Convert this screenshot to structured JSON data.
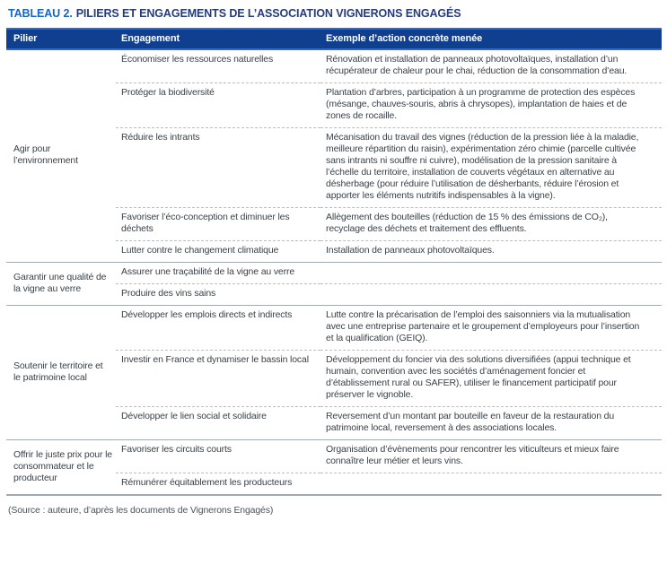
{
  "title": {
    "label": "TABLEAU 2.",
    "text": "PILIERS ET ENGAGEMENTS DE L’ASSOCIATION VIGNERONS ENGAGÉS"
  },
  "table": {
    "headers": [
      "Pilier",
      "Engagement",
      "Exemple d’action concrète menée"
    ],
    "groups": [
      {
        "pilier": "Agir pour l’environnement",
        "rows": [
          {
            "engagement": "Économiser les ressources naturelles",
            "exemple": "Rénovation et installation de panneaux photovoltaïques, installation d’un récupérateur de chaleur pour le chai, réduction de la consommation d’eau."
          },
          {
            "engagement": "Protéger la biodiversité",
            "exemple": "Plantation d’arbres, participation à un programme de protection des espèces (mésange, chauves-souris, abris à chrysopes), implantation de haies et de zones de rocaille."
          },
          {
            "engagement": "Réduire les intrants",
            "exemple": "Mécanisation du travail des vignes (réduction de la pression liée à la maladie, meilleure répartition du raisin), expérimentation zéro chimie (parcelle cultivée sans intrants ni souffre ni cuivre), modélisation de la pression sanitaire à l’échelle du territoire, installation de couverts végétaux en alternative au désherbage (pour réduire l’utilisation de désherbants, réduire l’érosion et apporter les éléments nutritifs indispensables à la vigne)."
          },
          {
            "engagement": "Favoriser l’éco-conception et diminuer les déchets",
            "exemple": "Allègement des bouteilles (réduction de 15 % des émissions de CO₂), recyclage des déchets et traitement des effluents."
          },
          {
            "engagement": "Lutter contre le changement climatique",
            "exemple": "Installation de panneaux photovoltaïques."
          }
        ]
      },
      {
        "pilier": "Garantir une qualité de la vigne au verre",
        "rows": [
          {
            "engagement": "Assurer une traçabilité de la vigne au verre",
            "exemple": ""
          },
          {
            "engagement": "Produire des vins sains",
            "exemple": ""
          }
        ]
      },
      {
        "pilier": "Soutenir le territoire et le patrimoine local",
        "rows": [
          {
            "engagement": "Développer les emplois directs et indirects",
            "exemple": "Lutte contre la précarisation de l’emploi des saisonniers via la mutualisation avec une entreprise partenaire et le groupement d’employeurs pour l’insertion et la qualification (GEIQ)."
          },
          {
            "engagement": "Investir en France et dynamiser le bassin local",
            "exemple": "Développement du foncier via des solutions diversifiées (appui technique et humain, convention avec les sociétés d’aménagement foncier et d’établissement rural ou SAFER), utiliser le financement participatif pour préserver le vignoble."
          },
          {
            "engagement": "Développer le lien social et solidaire",
            "exemple": "Reversement d’un montant par bouteille en faveur de la restauration du patrimoine local, reversement à des associations locales."
          }
        ]
      },
      {
        "pilier": "Offrir le juste prix pour le consommateur et le producteur",
        "rows": [
          {
            "engagement": "Favoriser les circuits courts",
            "exemple": "Organisation d’évènements pour rencontrer les viticulteurs et mieux faire connaître leur métier et leurs vins."
          },
          {
            "engagement": "Rémunérer équitablement les producteurs",
            "exemple": ""
          }
        ]
      }
    ]
  },
  "source": "(Source : auteure, d’après les documents de Vignerons Engagés)",
  "colors": {
    "header_bg": "#0f3f8e",
    "header_border": "#2e6bd0",
    "title_accent": "#1565c4",
    "title_main": "#253c78",
    "body_text": "#39424a",
    "group_separator": "#a3abb2",
    "row_separator_dashed": "#bdbdbd"
  }
}
